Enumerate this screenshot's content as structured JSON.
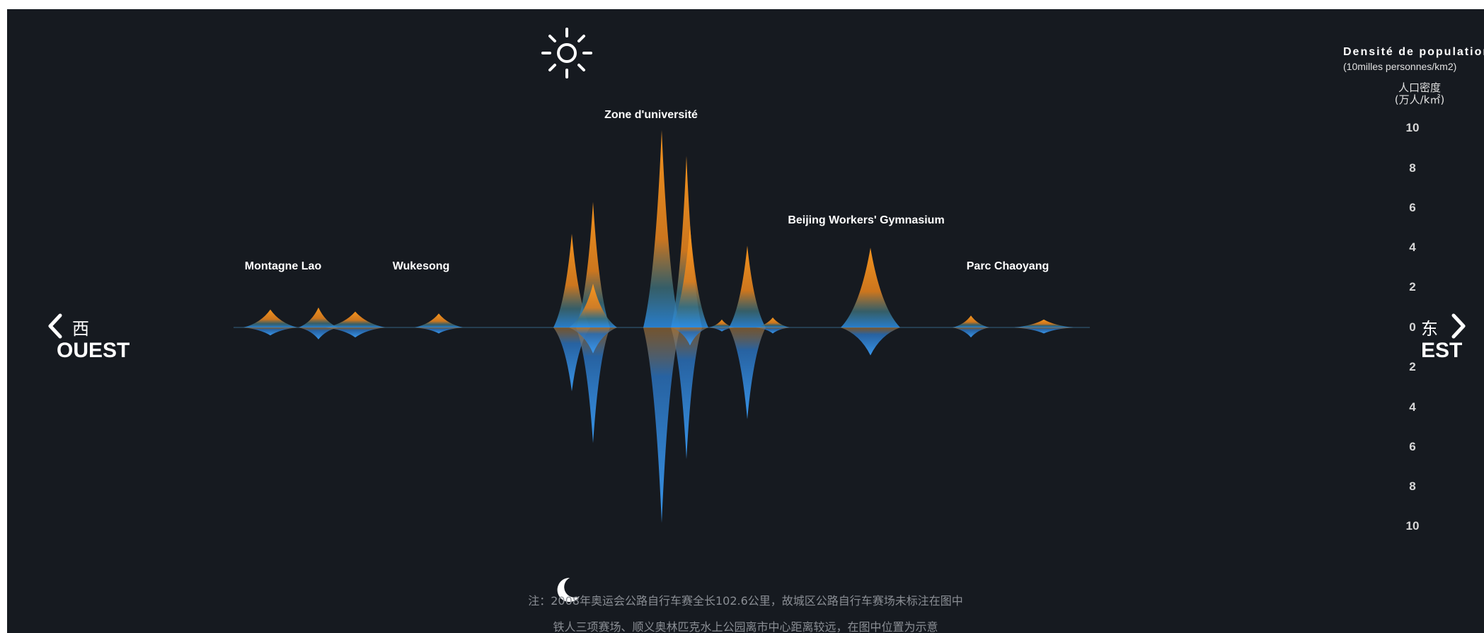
{
  "chart_data": {
    "type": "area",
    "legend": {
      "title_fr": "Densité de population",
      "unit_fr": "(10milles personnes/km2)",
      "title_cn": "人口密度",
      "unit_cn": "(万人/k㎡)"
    },
    "y_ticks_day": [
      "10",
      "8",
      "6",
      "4",
      "2",
      "0"
    ],
    "y_ticks_night": [
      "2",
      "4",
      "6",
      "8",
      "10"
    ],
    "ylim": [
      0,
      10
    ],
    "directions": {
      "west_cn": "西",
      "west_en": "OUEST",
      "east_cn": "东",
      "east_en": "EST"
    },
    "places": [
      {
        "label": "Montagne Lao"
      },
      {
        "label": "Wukesong"
      },
      {
        "label": "Zone d'université"
      },
      {
        "label": "Beijing Workers' Gymnasium"
      },
      {
        "label": "Parc Chaoyang"
      }
    ],
    "series": [
      {
        "name": "day",
        "icon": "sun-icon",
        "color": "#f08a1c"
      },
      {
        "name": "night",
        "icon": "moon-icon",
        "color": "#2f8fe8"
      }
    ],
    "peaks": [
      {
        "day": 0.9,
        "night": 0.4
      },
      {
        "day": 1.0,
        "night": 0.6
      },
      {
        "day": 0.8,
        "night": 0.5
      },
      {
        "day": 0.7,
        "night": 0.3
      },
      {
        "day": 4.7,
        "night": 3.2
      },
      {
        "day": 6.3,
        "night": 5.8
      },
      {
        "day": 2.2,
        "night": 1.3
      },
      {
        "day": 9.9,
        "night": 9.8
      },
      {
        "day": 8.6,
        "night": 6.6
      },
      {
        "day": 5.1,
        "night": 0.9
      },
      {
        "day": 0.4,
        "night": 0.2
      },
      {
        "day": 4.1,
        "night": 4.6
      },
      {
        "day": 0.5,
        "night": 0.3
      },
      {
        "day": 4.0,
        "night": 1.4
      },
      {
        "day": 0.6,
        "night": 0.5
      },
      {
        "day": 0.4,
        "night": 0.3
      }
    ]
  },
  "notes": {
    "line1": "注：2008年奥运会公路自行车赛全长102.6公里，故城区公路自行车赛场未标注在图中",
    "line2": "铁人三项赛场、顺义奥林匹克水上公园离市中心距离较远，在图中位置为示意"
  }
}
